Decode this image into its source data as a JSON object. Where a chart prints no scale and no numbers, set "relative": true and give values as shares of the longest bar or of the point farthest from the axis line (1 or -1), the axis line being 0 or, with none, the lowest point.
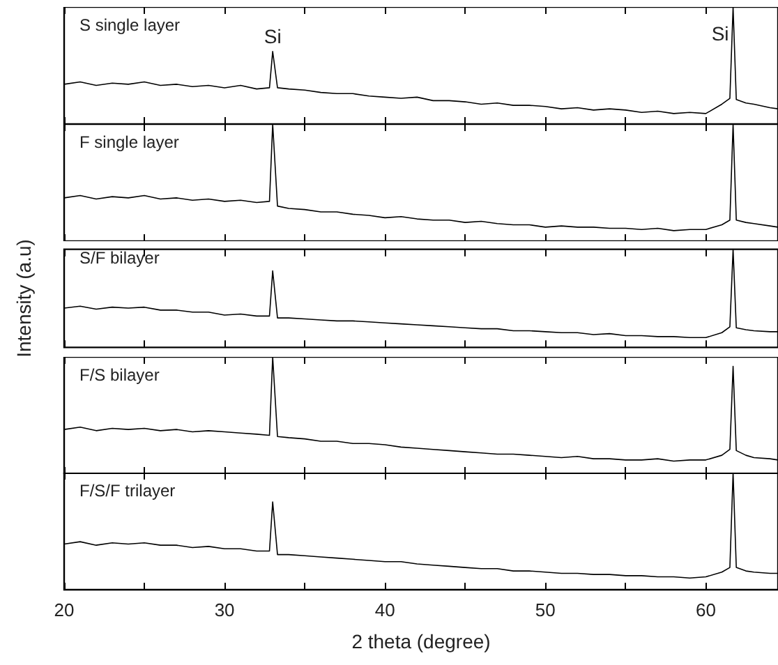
{
  "chart_data": [
    {
      "type": "line",
      "title": "S single layer",
      "relative": true,
      "color": "#000000",
      "marker": "none",
      "xlim": [
        20,
        64.5
      ],
      "xticks": [
        20,
        {
          "value": 25,
          "label": null
        },
        30,
        {
          "value": 35,
          "label": null
        },
        40,
        {
          "value": 45,
          "label": null
        },
        50,
        {
          "value": 55,
          "label": null
        },
        60
      ],
      "tick_labels": false,
      "annotations": [
        {
          "text": "Si",
          "x": 33,
          "y": 0.62
        },
        {
          "text": "Si",
          "x": 61.7,
          "y": 1
        }
      ],
      "x": [
        20,
        21,
        22,
        23,
        24,
        25,
        26,
        27,
        28,
        29,
        30,
        31,
        32,
        32.8,
        33,
        33.3,
        34,
        35,
        36,
        37,
        38,
        39,
        40,
        41,
        42,
        43,
        44,
        45,
        46,
        47,
        48,
        49,
        50,
        51,
        52,
        53,
        54,
        55,
        56,
        57,
        58,
        59,
        60,
        61,
        61.5,
        61.7,
        61.9,
        62.5,
        63,
        64,
        64.5
      ],
      "values": [
        0.34,
        0.36,
        0.33,
        0.35,
        0.34,
        0.36,
        0.33,
        0.34,
        0.32,
        0.33,
        0.31,
        0.33,
        0.3,
        0.31,
        0.62,
        0.31,
        0.3,
        0.29,
        0.27,
        0.26,
        0.26,
        0.24,
        0.23,
        0.22,
        0.23,
        0.2,
        0.2,
        0.19,
        0.17,
        0.18,
        0.16,
        0.16,
        0.15,
        0.13,
        0.14,
        0.12,
        0.13,
        0.12,
        0.1,
        0.11,
        0.09,
        0.1,
        0.09,
        0.17,
        0.22,
        1,
        0.21,
        0.18,
        0.17,
        0.14,
        0.13
      ]
    },
    {
      "type": "line",
      "title": "F single layer",
      "relative": true,
      "color": "#000000",
      "marker": "none",
      "xlim": [
        20,
        64.5
      ],
      "xticks": [
        20,
        {
          "value": 25,
          "label": null
        },
        30,
        {
          "value": 35,
          "label": null
        },
        40,
        {
          "value": 45,
          "label": null
        },
        50,
        {
          "value": 55,
          "label": null
        },
        60
      ],
      "tick_labels": false,
      "x": [
        20,
        21,
        22,
        23,
        24,
        25,
        26,
        27,
        28,
        29,
        30,
        31,
        32,
        32.8,
        33,
        33.3,
        34,
        35,
        36,
        37,
        38,
        39,
        40,
        41,
        42,
        43,
        44,
        45,
        46,
        47,
        48,
        49,
        50,
        51,
        52,
        53,
        54,
        55,
        56,
        57,
        58,
        59,
        60,
        61,
        61.5,
        61.7,
        61.9,
        62.5,
        63,
        64,
        64.5
      ],
      "values": [
        0.37,
        0.39,
        0.36,
        0.38,
        0.37,
        0.39,
        0.36,
        0.37,
        0.35,
        0.36,
        0.34,
        0.35,
        0.33,
        0.34,
        1,
        0.3,
        0.28,
        0.27,
        0.25,
        0.25,
        0.23,
        0.22,
        0.2,
        0.21,
        0.19,
        0.18,
        0.18,
        0.16,
        0.17,
        0.15,
        0.14,
        0.14,
        0.12,
        0.13,
        0.12,
        0.12,
        0.11,
        0.11,
        0.1,
        0.11,
        0.09,
        0.1,
        0.1,
        0.14,
        0.18,
        1,
        0.18,
        0.16,
        0.15,
        0.13,
        0.12
      ]
    },
    {
      "type": "line",
      "title": "S/F bilayer",
      "ylabel": "Intensity (a.u)",
      "relative": true,
      "color": "#000000",
      "marker": "none",
      "xlim": [
        20,
        64.5
      ],
      "xticks": [
        20,
        {
          "value": 25,
          "label": null
        },
        30,
        {
          "value": 35,
          "label": null
        },
        40,
        {
          "value": 45,
          "label": null
        },
        50,
        {
          "value": 55,
          "label": null
        },
        60
      ],
      "tick_labels": false,
      "x": [
        20,
        21,
        22,
        23,
        24,
        25,
        26,
        27,
        28,
        29,
        30,
        31,
        32,
        32.8,
        33,
        33.3,
        34,
        35,
        36,
        37,
        38,
        39,
        40,
        41,
        42,
        43,
        44,
        45,
        46,
        47,
        48,
        49,
        50,
        51,
        52,
        53,
        54,
        55,
        56,
        57,
        58,
        59,
        60,
        61,
        61.5,
        61.7,
        61.9,
        62.5,
        63,
        64,
        64.5
      ],
      "values": [
        0.4,
        0.42,
        0.39,
        0.41,
        0.4,
        0.41,
        0.38,
        0.38,
        0.36,
        0.36,
        0.33,
        0.34,
        0.32,
        0.32,
        0.78,
        0.3,
        0.3,
        0.29,
        0.28,
        0.27,
        0.27,
        0.26,
        0.25,
        0.24,
        0.23,
        0.22,
        0.21,
        0.2,
        0.19,
        0.19,
        0.17,
        0.17,
        0.16,
        0.15,
        0.15,
        0.13,
        0.14,
        0.12,
        0.12,
        0.11,
        0.11,
        0.1,
        0.1,
        0.15,
        0.21,
        1,
        0.2,
        0.18,
        0.17,
        0.16,
        0.16
      ]
    },
    {
      "type": "line",
      "title": "F/S bilayer",
      "relative": true,
      "color": "#000000",
      "marker": "none",
      "xlim": [
        20,
        64.5
      ],
      "xticks": [
        20,
        {
          "value": 25,
          "label": null
        },
        30,
        {
          "value": 35,
          "label": null
        },
        40,
        {
          "value": 45,
          "label": null
        },
        50,
        {
          "value": 55,
          "label": null
        },
        60
      ],
      "tick_labels": false,
      "x": [
        20,
        21,
        22,
        23,
        24,
        25,
        26,
        27,
        28,
        29,
        30,
        31,
        32,
        32.8,
        33,
        33.3,
        34,
        35,
        36,
        37,
        38,
        39,
        40,
        41,
        42,
        43,
        44,
        45,
        46,
        47,
        48,
        49,
        50,
        51,
        52,
        53,
        54,
        55,
        56,
        57,
        58,
        59,
        60,
        61,
        61.5,
        61.7,
        61.9,
        62.5,
        63,
        64,
        64.5
      ],
      "values": [
        0.38,
        0.4,
        0.37,
        0.39,
        0.38,
        0.39,
        0.37,
        0.38,
        0.36,
        0.37,
        0.36,
        0.35,
        0.34,
        0.33,
        1,
        0.32,
        0.31,
        0.3,
        0.28,
        0.28,
        0.26,
        0.26,
        0.25,
        0.23,
        0.22,
        0.21,
        0.2,
        0.19,
        0.18,
        0.17,
        0.17,
        0.16,
        0.15,
        0.14,
        0.15,
        0.13,
        0.13,
        0.12,
        0.12,
        0.13,
        0.11,
        0.12,
        0.12,
        0.16,
        0.21,
        0.92,
        0.2,
        0.16,
        0.14,
        0.13,
        0.12
      ]
    },
    {
      "type": "line",
      "title": "F/S/F trilayer",
      "xlabel": "2 theta (degree)",
      "relative": true,
      "color": "#000000",
      "marker": "none",
      "xlim": [
        20,
        64.5
      ],
      "xticks": [
        20,
        {
          "value": 25,
          "label": null
        },
        30,
        {
          "value": 35,
          "label": null
        },
        40,
        {
          "value": 45,
          "label": null
        },
        50,
        {
          "value": 55,
          "label": null
        },
        60
      ],
      "tick_labels": "x",
      "x": [
        20,
        21,
        22,
        23,
        24,
        25,
        26,
        27,
        28,
        29,
        30,
        31,
        32,
        32.8,
        33,
        33.3,
        34,
        35,
        36,
        37,
        38,
        39,
        40,
        41,
        42,
        43,
        44,
        45,
        46,
        47,
        48,
        49,
        50,
        51,
        52,
        53,
        54,
        55,
        56,
        57,
        58,
        59,
        60,
        61,
        61.5,
        61.7,
        61.9,
        62.5,
        63,
        64,
        64.5
      ],
      "values": [
        0.39,
        0.41,
        0.38,
        0.4,
        0.39,
        0.4,
        0.38,
        0.38,
        0.36,
        0.37,
        0.35,
        0.35,
        0.33,
        0.33,
        0.75,
        0.3,
        0.3,
        0.29,
        0.28,
        0.27,
        0.26,
        0.25,
        0.24,
        0.24,
        0.22,
        0.21,
        0.2,
        0.19,
        0.18,
        0.18,
        0.16,
        0.16,
        0.15,
        0.14,
        0.14,
        0.13,
        0.13,
        0.12,
        0.12,
        0.11,
        0.11,
        0.1,
        0.11,
        0.15,
        0.19,
        1,
        0.19,
        0.16,
        0.15,
        0.14,
        0.14
      ]
    }
  ]
}
